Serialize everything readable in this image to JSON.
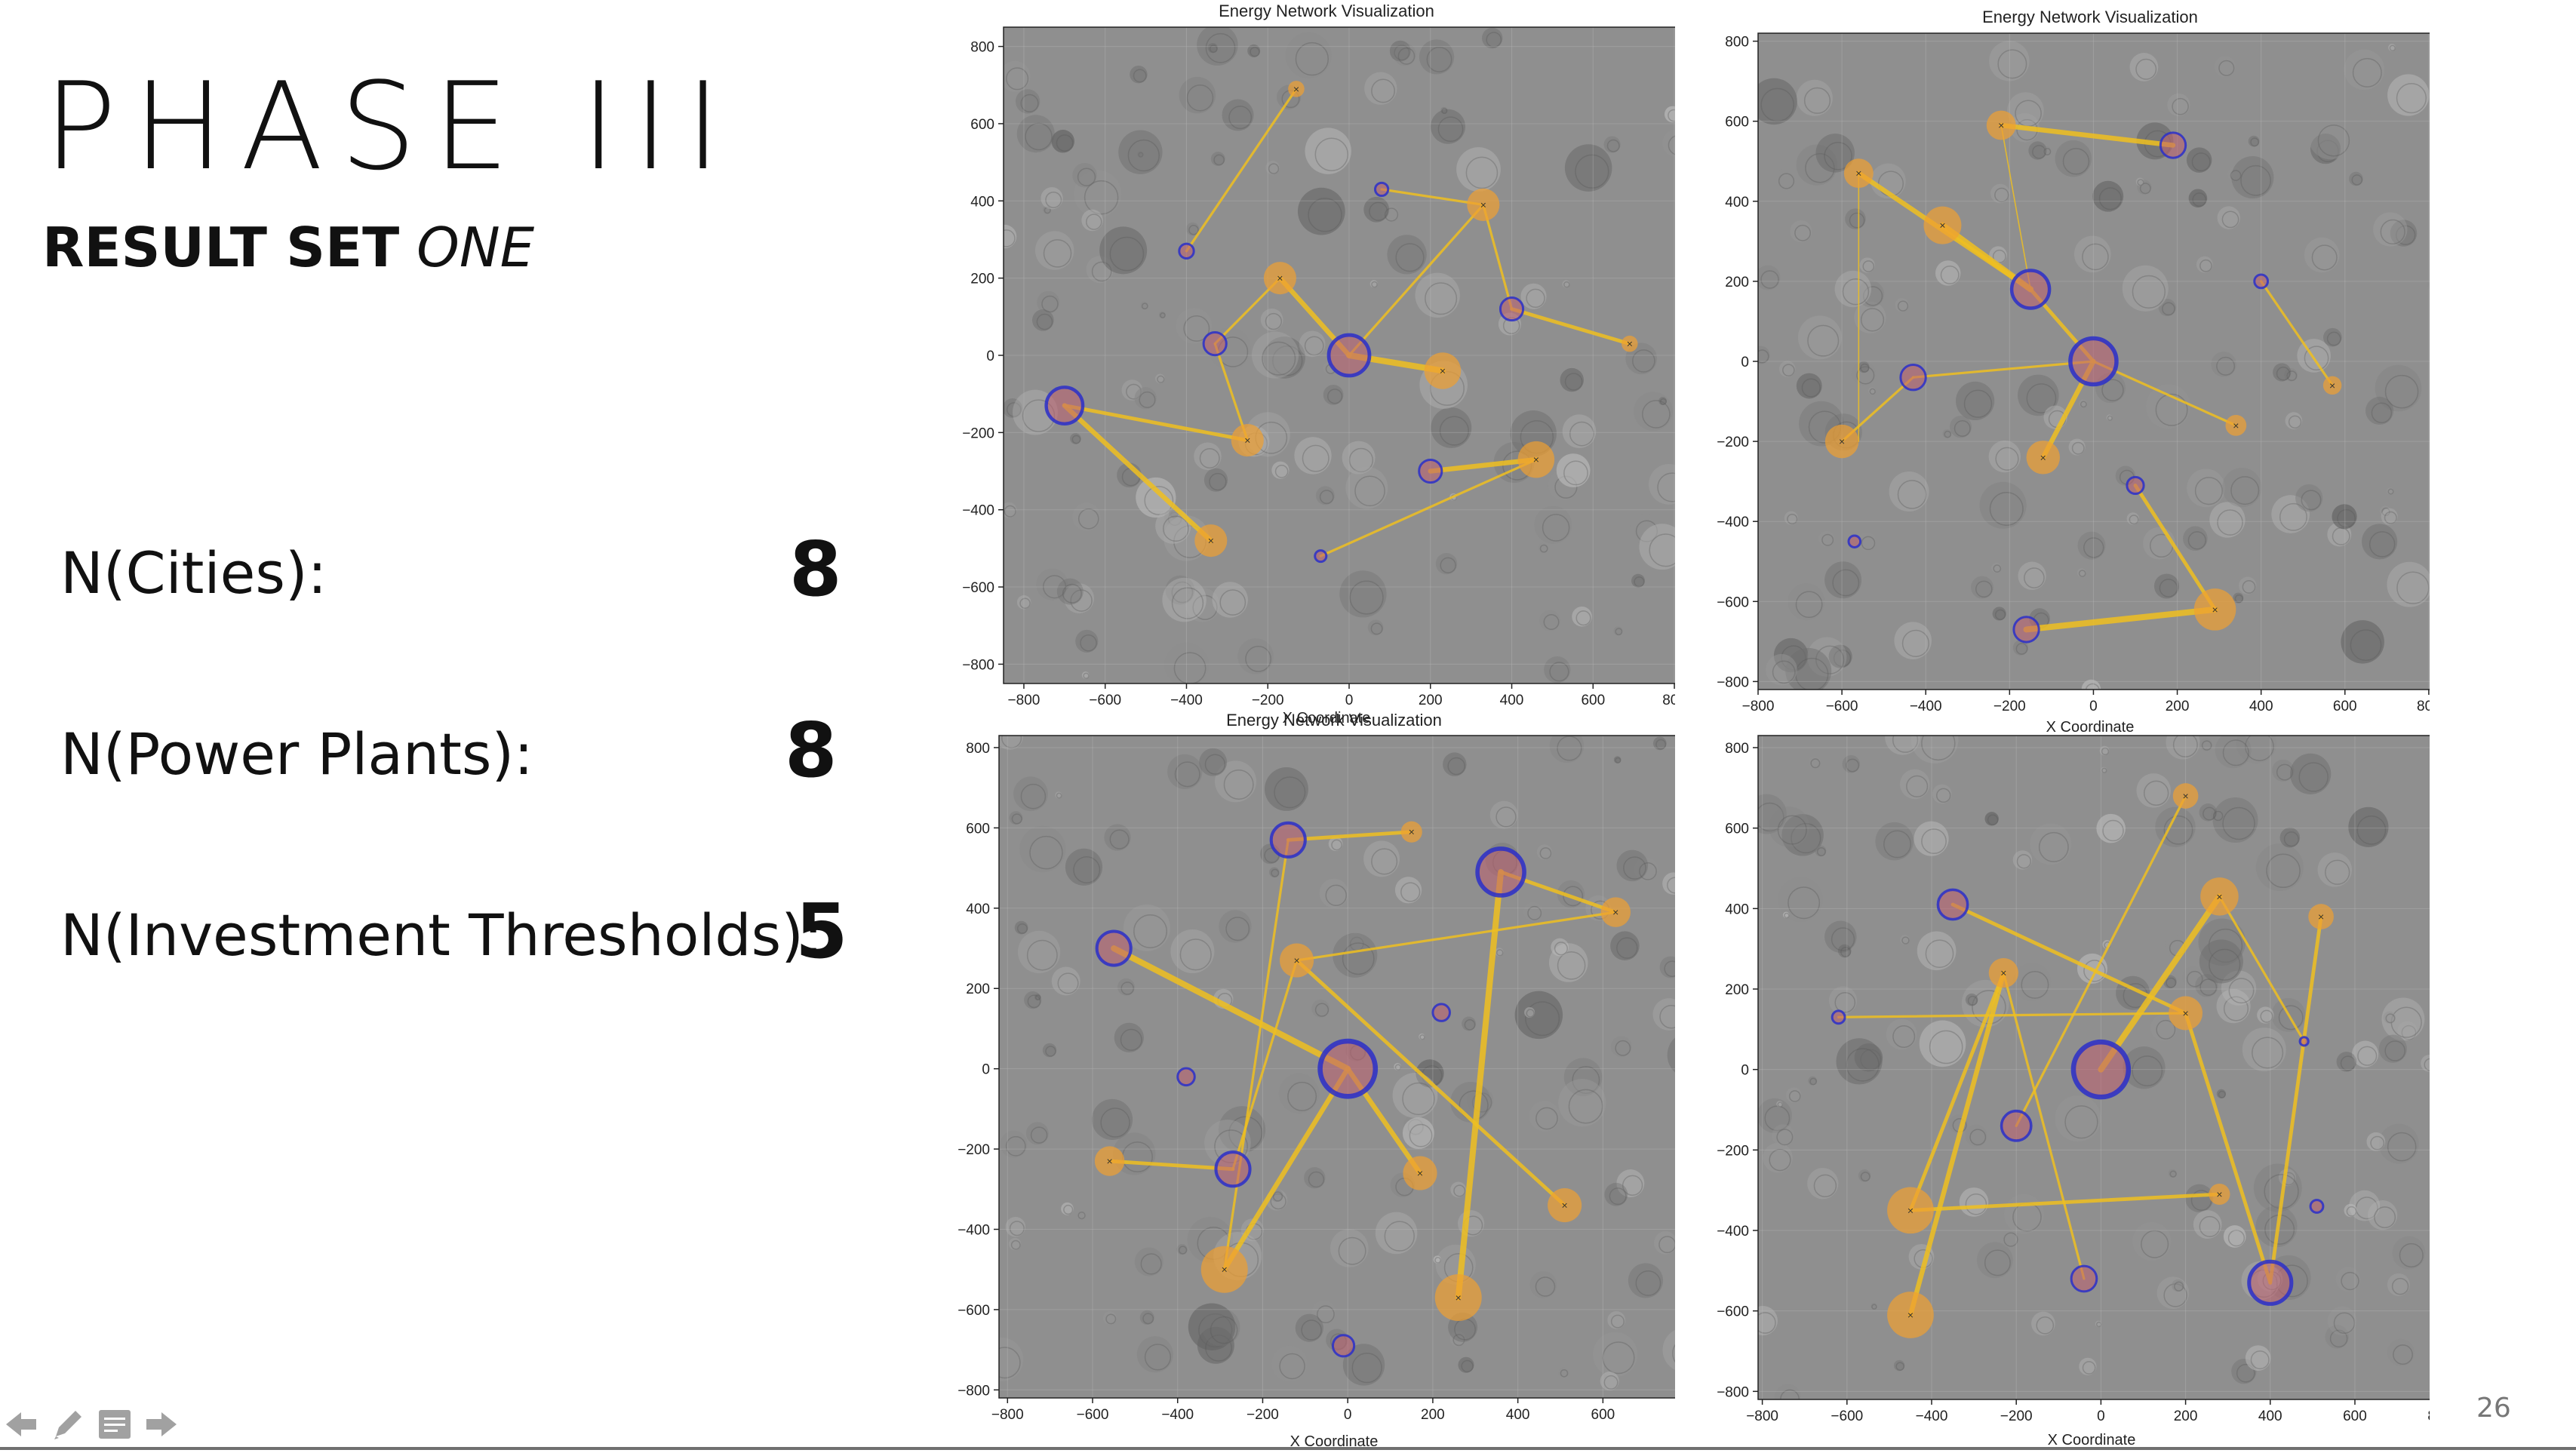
{
  "slide": {
    "title": "PHASE III",
    "subtitle_bold": "RESULT SET",
    "subtitle_italic": "ONE",
    "page_number": "26"
  },
  "stats": [
    {
      "label": "N(Cities):",
      "value": "8"
    },
    {
      "label": "N(Power Plants):",
      "value": "8"
    },
    {
      "label": "N(Investment Thresholds):",
      "value": "5"
    }
  ],
  "panels": [
    {
      "title": "Energy Network Visualization",
      "xlabel": "X Coordinate"
    },
    {
      "title": "Energy Network Visualization",
      "xlabel": "X Coordinate"
    },
    {
      "title": "Energy Network Visualization",
      "xlabel": "X Coordinate"
    },
    {
      "title": "",
      "xlabel": "X Coordinate"
    }
  ],
  "axes": {
    "ticks": [
      "−800",
      "−600",
      "−400",
      "−200",
      "0",
      "200",
      "400",
      "600",
      "800"
    ]
  },
  "colors": {
    "city": "#2a2fc9",
    "plant": "#f0a030",
    "line": "#f0c020",
    "terrain": "#8f8f8f"
  },
  "nav_icons": [
    "arrow-left-icon",
    "pen-icon",
    "notes-icon",
    "arrow-right-icon"
  ],
  "chart_data": [
    {
      "type": "scatter",
      "title": "Energy Network Visualization",
      "xlabel": "X Coordinate",
      "xlim": [
        -850,
        850
      ],
      "ylim": [
        -850,
        850
      ],
      "cities": [
        [
          -700,
          -130,
          45
        ],
        [
          -330,
          30,
          28
        ],
        [
          0,
          0,
          50
        ],
        [
          400,
          120,
          28
        ],
        [
          200,
          -300,
          28
        ],
        [
          -400,
          270,
          18
        ],
        [
          -70,
          -520,
          14
        ],
        [
          80,
          430,
          16
        ]
      ],
      "plants": [
        [
          -130,
          690,
          20
        ],
        [
          330,
          390,
          40
        ],
        [
          -170,
          200,
          40
        ],
        [
          230,
          -40,
          45
        ],
        [
          690,
          30,
          20
        ],
        [
          -250,
          -220,
          40
        ],
        [
          -340,
          -480,
          40
        ],
        [
          460,
          -270,
          45
        ]
      ],
      "links": [
        [
          [
            -700,
            -130
          ],
          [
            -250,
            -220
          ],
          3
        ],
        [
          [
            -700,
            -130
          ],
          [
            -340,
            -480
          ],
          4
        ],
        [
          [
            -330,
            30
          ],
          [
            -250,
            -220
          ],
          2
        ],
        [
          [
            -400,
            270
          ],
          [
            -130,
            690
          ],
          2
        ],
        [
          [
            0,
            0
          ],
          [
            -170,
            200
          ],
          4
        ],
        [
          [
            0,
            0
          ],
          [
            230,
            -40
          ],
          5
        ],
        [
          [
            0,
            0
          ],
          [
            330,
            390
          ],
          2
        ],
        [
          [
            80,
            430
          ],
          [
            330,
            390
          ],
          2
        ],
        [
          [
            330,
            390
          ],
          [
            400,
            120
          ],
          2
        ],
        [
          [
            400,
            120
          ],
          [
            690,
            30
          ],
          3
        ],
        [
          [
            200,
            -300
          ],
          [
            460,
            -270
          ],
          4
        ],
        [
          [
            -70,
            -520
          ],
          [
            460,
            -270
          ],
          2
        ],
        [
          [
            -330,
            30
          ],
          [
            -170,
            200
          ],
          2
        ]
      ]
    },
    {
      "type": "scatter",
      "title": "Energy Network Visualization",
      "xlabel": "X Coordinate",
      "xlim": [
        -800,
        820
      ],
      "ylim": [
        -820,
        820
      ],
      "cities": [
        [
          190,
          540,
          30
        ],
        [
          -150,
          180,
          45
        ],
        [
          0,
          0,
          55
        ],
        [
          400,
          200,
          16
        ],
        [
          -430,
          -40,
          30
        ],
        [
          -160,
          -670,
          30
        ],
        [
          100,
          -310,
          20
        ],
        [
          -570,
          -450,
          14
        ]
      ],
      "plants": [
        [
          -220,
          590,
          35
        ],
        [
          -560,
          470,
          35
        ],
        [
          -360,
          340,
          45
        ],
        [
          570,
          -60,
          22
        ],
        [
          -600,
          -200,
          40
        ],
        [
          -120,
          -240,
          40
        ],
        [
          340,
          -160,
          25
        ],
        [
          290,
          -620,
          50
        ]
      ],
      "links": [
        [
          [
            -220,
            590
          ],
          [
            190,
            540
          ],
          4
        ],
        [
          [
            -560,
            470
          ],
          [
            -150,
            180
          ],
          4
        ],
        [
          [
            -360,
            340
          ],
          [
            -150,
            180
          ],
          5
        ],
        [
          [
            -150,
            180
          ],
          [
            0,
            0
          ],
          3
        ],
        [
          [
            0,
            0
          ],
          [
            -120,
            -240
          ],
          4
        ],
        [
          [
            0,
            0
          ],
          [
            -430,
            -40
          ],
          2
        ],
        [
          [
            0,
            0
          ],
          [
            340,
            -160
          ],
          2
        ],
        [
          [
            -160,
            -670
          ],
          [
            290,
            -620
          ],
          5
        ],
        [
          [
            100,
            -310
          ],
          [
            290,
            -620
          ],
          3
        ],
        [
          [
            400,
            200
          ],
          [
            570,
            -60
          ],
          2
        ],
        [
          [
            -600,
            -200
          ],
          [
            -430,
            -40
          ],
          2
        ],
        [
          [
            -220,
            590
          ],
          [
            -150,
            180
          ],
          1
        ],
        [
          [
            -560,
            470
          ],
          [
            -560,
            -200
          ],
          1
        ]
      ]
    },
    {
      "type": "scatter",
      "title": "Energy Network Visualization",
      "xlabel": "X Coordinate",
      "xlim": [
        -820,
        830
      ],
      "ylim": [
        -820,
        830
      ],
      "cities": [
        [
          -140,
          570,
          40
        ],
        [
          360,
          490,
          55
        ],
        [
          -550,
          300,
          40
        ],
        [
          0,
          0,
          65
        ],
        [
          -380,
          -20,
          20
        ],
        [
          220,
          140,
          20
        ],
        [
          -270,
          -250,
          40
        ],
        [
          -10,
          -690,
          25
        ]
      ],
      "plants": [
        [
          150,
          590,
          25
        ],
        [
          630,
          390,
          35
        ],
        [
          -120,
          270,
          40
        ],
        [
          -560,
          -230,
          35
        ],
        [
          170,
          -260,
          40
        ],
        [
          510,
          -340,
          40
        ],
        [
          -290,
          -500,
          55
        ],
        [
          260,
          -570,
          55
        ]
      ],
      "links": [
        [
          [
            -140,
            570
          ],
          [
            150,
            590
          ],
          3
        ],
        [
          [
            -550,
            300
          ],
          [
            0,
            0
          ],
          5
        ],
        [
          [
            0,
            0
          ],
          [
            170,
            -260
          ],
          4
        ],
        [
          [
            0,
            0
          ],
          [
            -290,
            -500
          ],
          4
        ],
        [
          [
            360,
            490
          ],
          [
            260,
            -570
          ],
          5
        ],
        [
          [
            360,
            490
          ],
          [
            630,
            390
          ],
          3
        ],
        [
          [
            -560,
            -230
          ],
          [
            -270,
            -250
          ],
          3
        ],
        [
          [
            -270,
            -250
          ],
          [
            -120,
            270
          ],
          2
        ],
        [
          [
            630,
            390
          ],
          [
            -120,
            270
          ],
          2
        ],
        [
          [
            -120,
            270
          ],
          [
            510,
            -340
          ],
          3
        ],
        [
          [
            -290,
            -500
          ],
          [
            -140,
            570
          ],
          2
        ]
      ]
    },
    {
      "type": "scatter",
      "title": "",
      "xlabel": "X Coordinate",
      "xlim": [
        -810,
        830
      ],
      "ylim": [
        -820,
        830
      ],
      "cities": [
        [
          0,
          0,
          65
        ],
        [
          -350,
          410,
          35
        ],
        [
          -200,
          -140,
          35
        ],
        [
          400,
          -530,
          50
        ],
        [
          -40,
          -520,
          30
        ],
        [
          510,
          -340,
          15
        ],
        [
          -620,
          130,
          15
        ],
        [
          480,
          70,
          10
        ]
      ],
      "plants": [
        [
          200,
          680,
          30
        ],
        [
          280,
          430,
          45
        ],
        [
          -230,
          240,
          35
        ],
        [
          200,
          140,
          40
        ],
        [
          520,
          380,
          30
        ],
        [
          -450,
          -350,
          55
        ],
        [
          -450,
          -610,
          55
        ],
        [
          280,
          -310,
          25
        ]
      ],
      "links": [
        [
          [
            0,
            0
          ],
          [
            280,
            430
          ],
          5
        ],
        [
          [
            -350,
            410
          ],
          [
            200,
            140
          ],
          3
        ],
        [
          [
            -230,
            240
          ],
          [
            -450,
            -610
          ],
          4
        ],
        [
          [
            -230,
            240
          ],
          [
            -450,
            -350
          ],
          3
        ],
        [
          [
            -450,
            -350
          ],
          [
            280,
            -310
          ],
          3
        ],
        [
          [
            200,
            140
          ],
          [
            400,
            -530
          ],
          3
        ],
        [
          [
            520,
            380
          ],
          [
            400,
            -530
          ],
          3
        ],
        [
          [
            200,
            680
          ],
          [
            -200,
            -140
          ],
          2
        ],
        [
          [
            -620,
            130
          ],
          [
            200,
            140
          ],
          2
        ],
        [
          [
            280,
            430
          ],
          [
            480,
            70
          ],
          2
        ],
        [
          [
            -230,
            240
          ],
          [
            -40,
            -520
          ],
          2
        ]
      ]
    }
  ]
}
